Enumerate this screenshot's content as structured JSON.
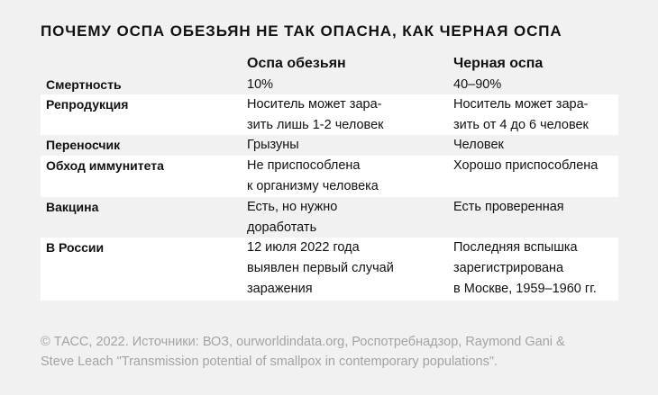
{
  "title": "ПОЧЕМУ ОСПА ОБЕЗЬЯН НЕ ТАК ОПАСНА, КАК ЧЕРНАЯ ОСПА",
  "table": {
    "headers": [
      "Оспа обезьян",
      "Черная оспа"
    ],
    "rows": [
      {
        "label": "Смертность",
        "monkeypox": "10%",
        "smallpox": "40–90%"
      },
      {
        "label": "Репродукция",
        "monkeypox": "Носитель может зара-\nзить лишь 1-2 человек",
        "smallpox": "Носитель может зара-\nзить от 4 до 6 человек"
      },
      {
        "label": "Переносчик",
        "monkeypox": "Грызуны",
        "smallpox": "Человек"
      },
      {
        "label": "Обход иммунитета",
        "monkeypox": "Не приспособлена\nк организму человека",
        "smallpox": "Хорошо приспособлена"
      },
      {
        "label": "Вакцина",
        "monkeypox": "Есть, но нужно\nдоработать",
        "smallpox": "Есть проверенная"
      },
      {
        "label": "В России",
        "monkeypox": "12 июля 2022 года\nвыявлен первый случай\nзаражения",
        "smallpox": "Последняя вспышка\nзарегистрирована\nв Москве, 1959–1960 гг."
      }
    ]
  },
  "footer": {
    "line1": "© ТАСС, 2022. Источники: ВОЗ, ourworldindata.org, Роспотребнадзор, Raymond Gani &",
    "line2": "Steve Leach \"Transmission potential of smallpox in contemporary populations\"."
  }
}
